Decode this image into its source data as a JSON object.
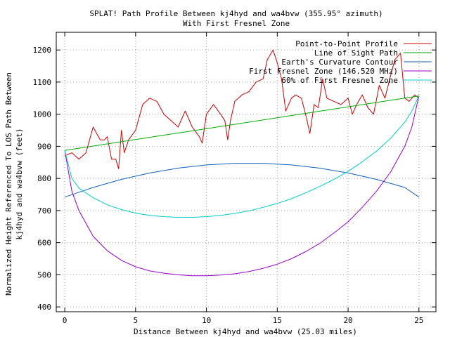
{
  "chart_data": {
    "type": "line",
    "title": "SPLAT! Path Profile Between kj4hyd and wa4bvw (355.95° azimuth)",
    "subtitle": "With First Fresnel Zone",
    "xlabel": "Distance Between kj4hyd and wa4bvw (25.03 miles)",
    "ylabel_line1": "Normalized Height Referenced To LOS Path Between",
    "ylabel_line2": "kj4hyd and wa4bvw (feet)",
    "xlim": [
      -0.6,
      26.2
    ],
    "ylim": [
      385,
      1255
    ],
    "x_ticks": [
      0,
      5,
      10,
      15,
      20,
      25
    ],
    "y_ticks": [
      400,
      500,
      600,
      700,
      800,
      900,
      1000,
      1100,
      1200
    ],
    "grid": true,
    "legend_position": "top-right",
    "series": [
      {
        "name": "Point-to-Point Profile",
        "color": "#cc0000",
        "x": [
          0,
          0.5,
          1.0,
          1.5,
          2.0,
          2.5,
          2.8,
          3.0,
          3.3,
          3.6,
          3.8,
          4.0,
          4.2,
          4.5,
          5.0,
          5.5,
          6.0,
          6.5,
          7.0,
          7.5,
          8.0,
          8.5,
          9.0,
          9.5,
          9.7,
          10.0,
          10.5,
          11.0,
          11.3,
          11.5,
          11.7,
          12.0,
          12.5,
          13.0,
          13.5,
          14.0,
          14.3,
          14.7,
          15.0,
          15.3,
          15.6,
          16.0,
          16.3,
          16.7,
          17.0,
          17.3,
          17.6,
          17.9,
          18.2,
          18.5,
          19.0,
          19.5,
          20.0,
          20.3,
          20.6,
          21.0,
          21.4,
          21.8,
          22.2,
          22.6,
          23.0,
          23.3,
          23.7,
          24.0,
          24.3,
          24.7,
          25.0
        ],
        "y": [
          870,
          880,
          860,
          880,
          960,
          920,
          920,
          930,
          860,
          860,
          830,
          950,
          880,
          920,
          950,
          1030,
          1050,
          1040,
          1000,
          980,
          960,
          1010,
          960,
          930,
          910,
          1000,
          1030,
          1000,
          980,
          920,
          980,
          1040,
          1060,
          1070,
          1100,
          1110,
          1170,
          1200,
          1160,
          1110,
          1010,
          1050,
          1060,
          1050,
          1000,
          940,
          1030,
          1020,
          1110,
          1050,
          1040,
          1030,
          1050,
          1000,
          1030,
          1060,
          1020,
          1000,
          1090,
          1050,
          1120,
          1170,
          1190,
          1050,
          1040,
          1060,
          1050
        ]
      },
      {
        "name": "Line of Sight Path",
        "color": "#00aa00",
        "x": [
          0,
          25
        ],
        "y": [
          887,
          1057
        ]
      },
      {
        "name": "Earth's Curvature Contour",
        "color": "#1060c0",
        "x": [
          0,
          2,
          4,
          6,
          8,
          10,
          12,
          14,
          16,
          18,
          20,
          22,
          24,
          25
        ],
        "y": [
          742,
          772,
          797,
          817,
          832,
          842,
          847,
          847,
          842,
          832,
          817,
          797,
          772,
          742
        ]
      },
      {
        "name": "First Fresnel Zone (146.520 MHz)",
        "color": "#9900cc",
        "x": [
          0,
          0.5,
          1,
          2,
          3,
          4,
          5,
          6,
          7,
          8,
          9,
          10,
          11,
          12,
          13,
          14,
          15,
          16,
          17,
          18,
          19,
          20,
          21,
          22,
          23,
          24,
          24.5,
          25
        ],
        "y": [
          887,
          760,
          700,
          620,
          575,
          545,
          525,
          512,
          505,
          500,
          497,
          497,
          499,
          503,
          510,
          520,
          533,
          550,
          572,
          598,
          630,
          665,
          710,
          760,
          820,
          900,
          960,
          1057
        ]
      },
      {
        "name": "60% of First Fresnel Zone",
        "color": "#00cccc",
        "x": [
          0,
          0.5,
          1,
          2,
          3,
          4,
          5,
          6,
          7,
          8,
          9,
          10,
          11,
          12,
          13,
          14,
          15,
          16,
          17,
          18,
          19,
          20,
          21,
          22,
          23,
          24,
          24.5,
          25
        ],
        "y": [
          887,
          800,
          770,
          740,
          718,
          703,
          692,
          685,
          681,
          679,
          679,
          681,
          685,
          691,
          699,
          710,
          722,
          737,
          755,
          775,
          797,
          822,
          852,
          885,
          925,
          975,
          1010,
          1057
        ]
      }
    ]
  }
}
